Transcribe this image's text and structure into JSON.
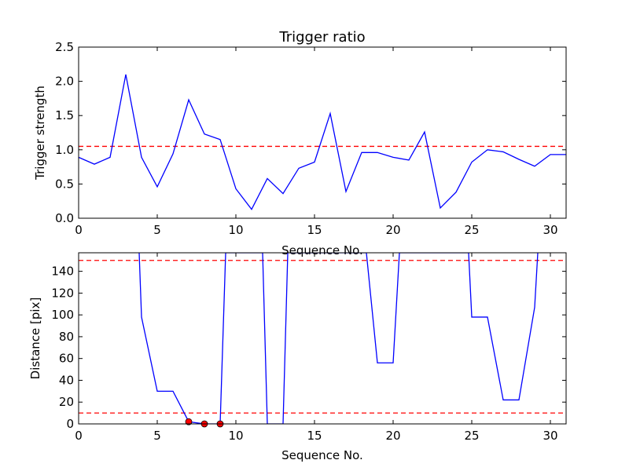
{
  "chart_data": [
    {
      "type": "line",
      "title": "Trigger ratio",
      "xlabel": "Sequence No.",
      "ylabel": "Trigger strength",
      "xlim": [
        0,
        31
      ],
      "ylim": [
        0,
        2.5
      ],
      "xticks": [
        "0",
        "5",
        "10",
        "15",
        "20",
        "25",
        "30"
      ],
      "yticks": [
        "0.0",
        "0.5",
        "1.0",
        "1.5",
        "2.0",
        "2.5"
      ],
      "grid": false,
      "series": [
        {
          "x": [
            0,
            1,
            2,
            3,
            4,
            5,
            6,
            7,
            8,
            9,
            10,
            11,
            12,
            13,
            14,
            15,
            16,
            17,
            18,
            19,
            20,
            21,
            22,
            23,
            24,
            25,
            26,
            27,
            28,
            29,
            30,
            31
          ],
          "values": [
            0.89,
            0.79,
            0.89,
            2.1,
            0.89,
            0.46,
            0.94,
            1.73,
            1.23,
            1.15,
            0.43,
            0.13,
            0.58,
            0.36,
            0.73,
            0.82,
            1.53,
            0.39,
            0.96,
            0.96,
            0.89,
            0.85,
            1.26,
            0.15,
            0.38,
            0.82,
            1.0,
            0.97,
            0.86,
            0.76,
            0.93,
            0.93
          ],
          "color": "#0000ff"
        }
      ],
      "reference_lines": [
        {
          "y": 1.05,
          "color": "#ff0000",
          "style": "dashed"
        }
      ]
    },
    {
      "type": "line",
      "title": "",
      "xlabel": "Sequence No.",
      "ylabel": "Distance [pix]",
      "xlim": [
        0,
        31
      ],
      "ylim": [
        0,
        157
      ],
      "xticks": [
        "0",
        "5",
        "10",
        "15",
        "20",
        "25",
        "30"
      ],
      "yticks": [
        "0",
        "20",
        "40",
        "60",
        "80",
        "100",
        "120",
        "140"
      ],
      "grid": false,
      "series": [
        {
          "x": [
            3.85,
            4,
            5,
            6,
            7,
            8,
            9,
            9.35,
            11.7,
            12,
            13,
            13.3,
            18.3,
            19,
            20,
            20.4,
            24.8,
            25,
            26,
            27,
            28,
            29,
            29.2
          ],
          "values": [
            157,
            98,
            30,
            30,
            2,
            0,
            0,
            157,
            157,
            0,
            0,
            157,
            157,
            56,
            56,
            157,
            157,
            98,
            98,
            22,
            22,
            107,
            157
          ],
          "color": "#0000ff"
        }
      ],
      "markers": [
        {
          "x": 7,
          "y": 2,
          "color": "#ff0000"
        },
        {
          "x": 8,
          "y": 0,
          "color": "#ff0000"
        },
        {
          "x": 9,
          "y": 0,
          "color": "#ff0000"
        }
      ],
      "reference_lines": [
        {
          "y": 150,
          "color": "#ff0000",
          "style": "dashed"
        },
        {
          "y": 10,
          "color": "#ff0000",
          "style": "dashed"
        }
      ]
    }
  ]
}
